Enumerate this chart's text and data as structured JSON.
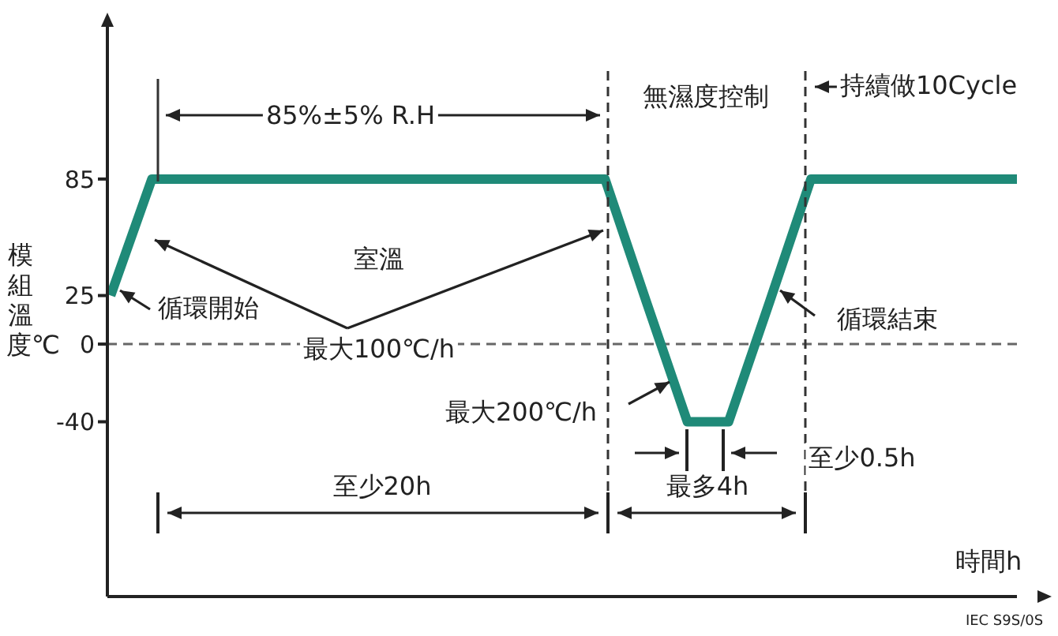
{
  "chart_data": {
    "type": "line",
    "xlabel": "時間h",
    "ylabel": "模組溫度℃",
    "categories": [
      null,
      null,
      null,
      null,
      null,
      null,
      null,
      null,
      null,
      null,
      null,
      null,
      null,
      null,
      null,
      null,
      null,
      null,
      null,
      null,
      null,
      null,
      null
    ],
    "series": [
      {
        "color": "#1f8a78",
        "values": [
          25,
          85,
          85,
          85,
          85,
          85,
          85,
          85,
          85,
          85,
          85,
          85,
          85,
          22,
          -40,
          -40,
          22,
          85,
          85,
          85,
          85,
          85,
          85
        ]
      }
    ],
    "ylim": [
      -130,
      165
    ],
    "yticks": [
      85,
      25,
      0,
      -40
    ],
    "ref_lines": [
      {
        "axis": "y",
        "value": 0,
        "line_style": "dashed",
        "color": "#666666"
      }
    ],
    "annotations": [
      "85%±5% R.H",
      "無濕度控制",
      "持續做10Cycle",
      "室溫",
      "循環開始",
      "最大100℃/h",
      "循環結束",
      "最大200℃/h",
      "至少0.5h",
      "最多4h",
      "至少20h",
      "IEC S9S/0S"
    ],
    "tick_labels": "y",
    "grid": false,
    "legend": false,
    "marker": "none",
    "line_style": "solid"
  }
}
